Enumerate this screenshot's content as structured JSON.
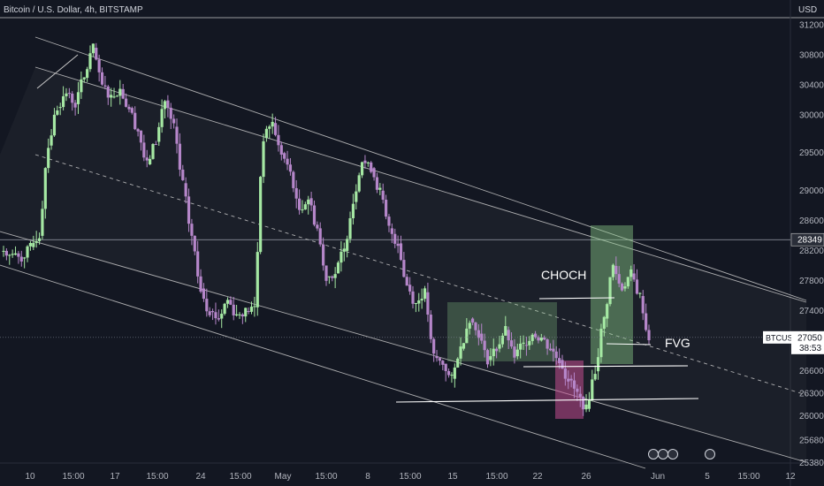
{
  "header": {
    "title": "Bitcoin / U.S. Dollar, 4h, BITSTAMP",
    "currency": "USD"
  },
  "colors": {
    "background": "#131722",
    "up": "#a5e8a3",
    "down": "#b586c9",
    "channel": "#c8c8c8",
    "green_zone": "#8fd18c",
    "purple_zone": "#c24d8f",
    "label_box": "#ffffff"
  },
  "chart_data": {
    "type": "candlestick",
    "ylim": [
      25380,
      31300
    ],
    "y_ticks": [
      31200,
      30800,
      30400,
      30000,
      29500,
      29000,
      28600,
      28200,
      27800,
      27400,
      27050,
      26600,
      26300,
      26000,
      25680,
      25380
    ],
    "x_ticks": [
      "10",
      "15:00",
      "17",
      "15:00",
      "24",
      "15:00",
      "May",
      "15:00",
      "8",
      "15:00",
      "15",
      "15:00",
      "22",
      "26",
      "Jun",
      "5",
      "15:00",
      "12"
    ],
    "horizontal_levels": [
      28349
    ],
    "price_labels": [
      {
        "symbol": "28349",
        "value": 28349
      },
      {
        "symbol": "BTCUSD",
        "value": "27050",
        "timer": "38:53"
      }
    ],
    "annotations": [
      "CHOCH",
      "FVG"
    ],
    "close_series": [
      28200,
      28150,
      28100,
      28250,
      28400,
      29600,
      30100,
      30300,
      30150,
      30500,
      30900,
      30400,
      30250,
      30350,
      30100,
      29800,
      29350,
      29650,
      30200,
      29850,
      29100,
      28400,
      27700,
      27400,
      27300,
      27550,
      27350,
      27400,
      27450,
      29700,
      29900,
      29500,
      29250,
      28750,
      28900,
      28500,
      27850,
      27900,
      28200,
      28850,
      29400,
      29300,
      29000,
      28500,
      28300,
      27750,
      27500,
      27650,
      26800,
      26700,
      26500,
      26900,
      27300,
      27100,
      26750,
      26900,
      27150,
      26800,
      26950,
      27100,
      27050,
      26900,
      26750,
      26500,
      26300,
      26100,
      26600,
      27300,
      28000,
      27700,
      27900,
      27600,
      27050
    ]
  }
}
